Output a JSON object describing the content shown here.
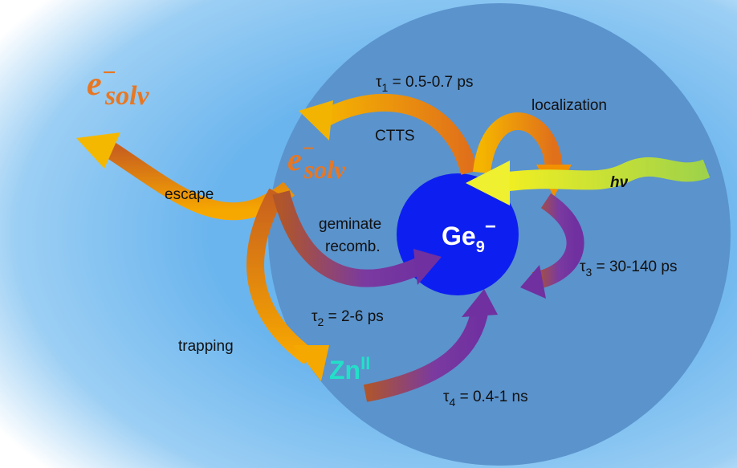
{
  "species": {
    "electron": {
      "base": "e",
      "sup": "−",
      "sub": "solv"
    },
    "germanium": {
      "base": "Ge",
      "sub": "9",
      "sup": "−"
    },
    "zinc": {
      "base": "Zn",
      "sup": "II"
    }
  },
  "labels": {
    "escape": "escape",
    "trapping": "trapping",
    "ctts": "CTTS",
    "localization": "localization",
    "geminate": [
      "geminate",
      "recomb."
    ],
    "light": {
      "base": "h",
      "sub2": "ν"
    }
  },
  "lifetimes": [
    {
      "symbol": "τ",
      "sub": "1",
      "text": " = 0.5-0.7 ps"
    },
    {
      "symbol": "τ",
      "sub": "2",
      "text": " = 2-6 ps"
    },
    {
      "symbol": "τ",
      "sub": "3",
      "text": " = 30-140 ps"
    },
    {
      "symbol": "τ",
      "sub": "4",
      "text": " = 0.4-1 ns"
    }
  ]
}
